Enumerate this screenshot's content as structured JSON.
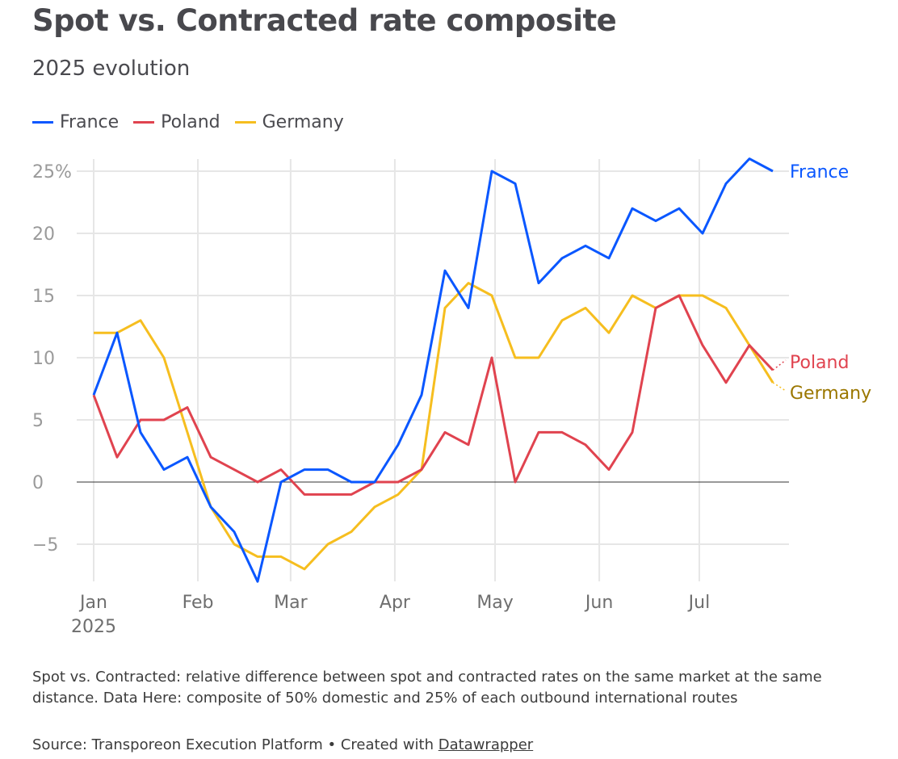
{
  "title": "Spot vs. Contracted rate composite",
  "subtitle": "2025 evolution",
  "notes": "Spot vs. Contracted: relative difference between spot and contracted rates on the same market at the same distance. Data Here: composite of 50% domestic and 25% of each outbound international routes",
  "source": {
    "prefix": "Source: Transporeon Execution Platform • Created with ",
    "link": "Datawrapper"
  },
  "colors": {
    "France": "#0a57ff",
    "Poland": "#e0434f",
    "Germany": "#f6be1f",
    "GermanyLabel": "#9b7700",
    "grid": "#e6e6e6",
    "zero": "#333333",
    "tick": "#9a9a9a",
    "xtick": "#6e6e6e"
  },
  "chart_data": {
    "type": "line",
    "title": "Spot vs. Contracted rate composite",
    "subtitle": "2025 evolution",
    "x_unit": "week of 2025",
    "x_ticks": [
      {
        "label": "Jan",
        "sub": "2025",
        "week": 0
      },
      {
        "label": "Feb",
        "week": 4.45
      },
      {
        "label": "Mar",
        "week": 8.41
      },
      {
        "label": "Apr",
        "week": 12.86
      },
      {
        "label": "May",
        "week": 17.14
      },
      {
        "label": "Jun",
        "week": 21.59
      },
      {
        "label": "Jul",
        "week": 25.86
      }
    ],
    "y_ticks": [
      {
        "v": 25,
        "label": "25%"
      },
      {
        "v": 20,
        "label": "20"
      },
      {
        "v": 15,
        "label": "15"
      },
      {
        "v": 10,
        "label": "10"
      },
      {
        "v": 5,
        "label": "5"
      },
      {
        "v": 0,
        "label": "0"
      },
      {
        "v": -5,
        "label": "−5"
      }
    ],
    "ylim": [
      -8,
      26
    ],
    "grid": true,
    "legend": "top-left",
    "series": [
      {
        "name": "France",
        "values": [
          7,
          12,
          4,
          1,
          2,
          -2,
          -4,
          -8,
          0,
          1,
          1,
          0,
          0,
          3,
          7,
          17,
          14,
          25,
          24,
          16,
          18,
          19,
          18,
          22,
          21,
          22,
          20,
          24,
          26,
          25
        ]
      },
      {
        "name": "Poland",
        "values": [
          7,
          2,
          5,
          5,
          6,
          2,
          1,
          0,
          1,
          -1,
          -1,
          -1,
          0,
          0,
          1,
          4,
          3,
          10,
          0,
          4,
          4,
          3,
          1,
          4,
          14,
          15,
          11,
          8,
          11,
          9
        ]
      },
      {
        "name": "Germany",
        "values": [
          12,
          12,
          13,
          10,
          4,
          -2,
          -5,
          -6,
          -6,
          -7,
          -5,
          -4,
          -2,
          -1,
          1,
          14,
          16,
          15,
          10,
          10,
          13,
          14,
          12,
          15,
          14,
          15,
          15,
          14,
          11,
          8
        ]
      }
    ]
  }
}
